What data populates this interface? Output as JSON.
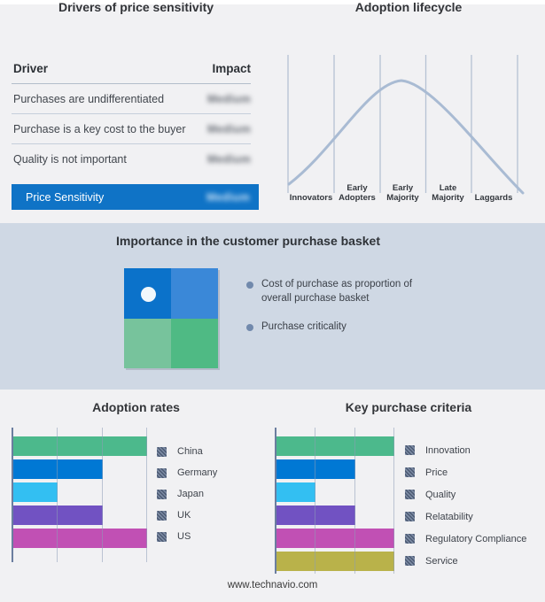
{
  "footer": {
    "text": "www.technavio.com"
  },
  "basket": {
    "title": "Importance in the customer purchase basket",
    "legend": [
      "Cost of purchase as proportion of overall purchase basket",
      "Purchase criticality"
    ],
    "bullet_color": "#7189ac",
    "quadrant_colors": {
      "top_left": "#0b72ca",
      "top_right": "#3a88d8",
      "bottom_left": "#77c39c",
      "bottom_right": "#4fba84"
    },
    "marker": "white dot in top-left quadrant"
  },
  "chart_data": [
    {
      "type": "table",
      "title": "Drivers of price sensitivity",
      "columns": [
        "Driver",
        "Impact"
      ],
      "rows": [
        {
          "driver": "Purchases are undifferentiated",
          "impact": "Medium",
          "impact_redacted": true
        },
        {
          "driver": "Purchase is a key cost to the buyer",
          "impact": "Medium",
          "impact_redacted": true
        },
        {
          "driver": "Quality is not important",
          "impact": "Medium",
          "impact_redacted": true
        }
      ],
      "highlight": {
        "driver": "Price Sensitivity",
        "impact": "Medium",
        "impact_redacted": true,
        "row_color": "#0f73c6"
      }
    },
    {
      "type": "line",
      "title": "Adoption lifecycle",
      "subtype": "bell-curve",
      "categories": [
        "Innovators",
        "Early Adopters",
        "Early Majority",
        "Late Majority",
        "Laggards"
      ],
      "curve_color": "#a9bbd3",
      "divider_color": "#b6c2d4",
      "note": "unlabeled bell curve peaking in the Early Majority segment"
    },
    {
      "type": "bar",
      "orientation": "horizontal",
      "title": "Adoption rates",
      "categories": [
        "China",
        "Germany",
        "Japan",
        "UK",
        "US"
      ],
      "values": [
        100,
        67,
        33,
        67,
        100
      ],
      "xlim": [
        0,
        100
      ],
      "value_scale": "relative, no numeric axis labels shown",
      "colors": [
        "#4cb98c",
        "#0078d4",
        "#33bff2",
        "#7152c2",
        "#c150b4"
      ],
      "gridlines": [
        33.3,
        66.6,
        100
      ],
      "legend_position": "right"
    },
    {
      "type": "bar",
      "orientation": "horizontal",
      "title": "Key purchase criteria",
      "categories": [
        "Innovation",
        "Price",
        "Quality",
        "Relatability",
        "Regulatory Compliance",
        "Service"
      ],
      "values": [
        100,
        67,
        33,
        67,
        100,
        100
      ],
      "xlim": [
        0,
        100
      ],
      "value_scale": "relative, no numeric axis labels shown",
      "colors": [
        "#4cb98c",
        "#0078d4",
        "#33bff2",
        "#7152c2",
        "#c150b4",
        "#b9b24a"
      ],
      "gridlines": [
        33.3,
        66.6,
        100
      ],
      "legend_position": "right"
    }
  ]
}
